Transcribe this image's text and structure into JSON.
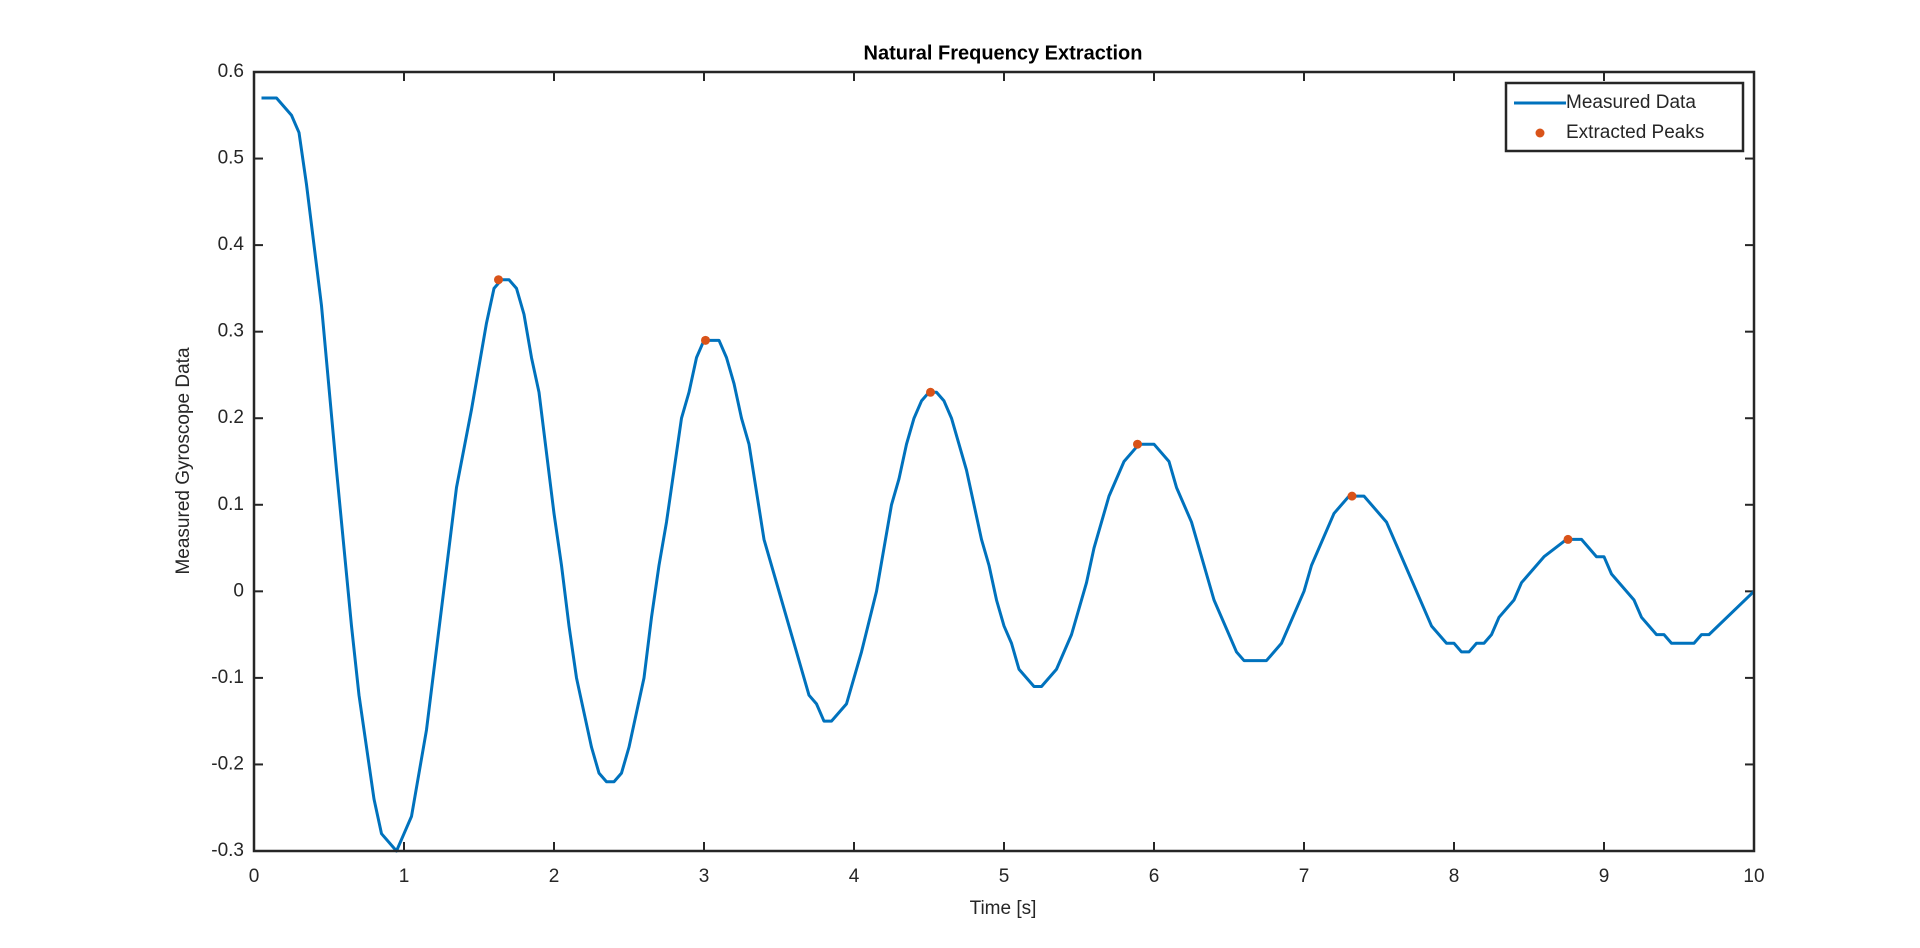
{
  "chart_data": {
    "type": "line",
    "title": "Natural Frequency Extraction",
    "xlabel": "Time [s]",
    "ylabel": "Measured Gyroscope Data",
    "xlim": [
      0,
      10
    ],
    "ylim": [
      -0.3,
      0.6
    ],
    "xticks": [
      0,
      1,
      2,
      3,
      4,
      5,
      6,
      7,
      8,
      9,
      10
    ],
    "yticks": [
      -0.3,
      -0.2,
      -0.1,
      0,
      0.1,
      0.2,
      0.3,
      0.4,
      0.5,
      0.6
    ],
    "legend": "northeast",
    "series": [
      {
        "name": "Measured Data",
        "color": "#0072bd",
        "mode": "line",
        "x": [
          0.05,
          0.15,
          0.25,
          0.3,
          0.35,
          0.45,
          0.55,
          0.65,
          0.7,
          0.8,
          0.85,
          0.95,
          1.0,
          1.05,
          1.15,
          1.25,
          1.35,
          1.45,
          1.55,
          1.6,
          1.65,
          1.7,
          1.75,
          1.8,
          1.85,
          1.9,
          2.0,
          2.05,
          2.1,
          2.15,
          2.25,
          2.3,
          2.35,
          2.4,
          2.45,
          2.5,
          2.6,
          2.65,
          2.7,
          2.75,
          2.85,
          2.9,
          2.95,
          3.0,
          3.05,
          3.1,
          3.15,
          3.2,
          3.25,
          3.3,
          3.4,
          3.5,
          3.6,
          3.7,
          3.75,
          3.8,
          3.85,
          3.95,
          4.05,
          4.15,
          4.2,
          4.25,
          4.3,
          4.35,
          4.4,
          4.45,
          4.5,
          4.55,
          4.6,
          4.65,
          4.75,
          4.85,
          4.9,
          4.95,
          5.0,
          5.05,
          5.1,
          5.2,
          5.25,
          5.35,
          5.45,
          5.55,
          5.6,
          5.7,
          5.8,
          5.9,
          6.0,
          6.1,
          6.15,
          6.25,
          6.4,
          6.55,
          6.6,
          6.75,
          6.85,
          7.0,
          7.05,
          7.2,
          7.3,
          7.4,
          7.55,
          7.7,
          7.85,
          7.9,
          7.95,
          8.0,
          8.05,
          8.1,
          8.15,
          8.2,
          8.25,
          8.3,
          8.4,
          8.45,
          8.6,
          8.75,
          8.85,
          8.95,
          9.0,
          9.05,
          9.2,
          9.25,
          9.35,
          9.4,
          9.45,
          9.6,
          9.65,
          9.7,
          10.0
        ],
        "values": [
          0.57,
          0.57,
          0.55,
          0.53,
          0.47,
          0.33,
          0.14,
          -0.04,
          -0.12,
          -0.24,
          -0.28,
          -0.3,
          -0.28,
          -0.26,
          -0.16,
          -0.02,
          0.12,
          0.21,
          0.31,
          0.35,
          0.36,
          0.36,
          0.35,
          0.32,
          0.27,
          0.23,
          0.09,
          0.03,
          -0.04,
          -0.1,
          -0.18,
          -0.21,
          -0.22,
          -0.22,
          -0.21,
          -0.18,
          -0.1,
          -0.03,
          0.03,
          0.08,
          0.2,
          0.23,
          0.27,
          0.29,
          0.29,
          0.29,
          0.27,
          0.24,
          0.2,
          0.17,
          0.06,
          0.0,
          -0.06,
          -0.12,
          -0.13,
          -0.15,
          -0.15,
          -0.13,
          -0.07,
          0.0,
          0.05,
          0.1,
          0.13,
          0.17,
          0.2,
          0.22,
          0.23,
          0.23,
          0.22,
          0.2,
          0.14,
          0.06,
          0.03,
          -0.01,
          -0.04,
          -0.06,
          -0.09,
          -0.11,
          -0.11,
          -0.09,
          -0.05,
          0.01,
          0.05,
          0.11,
          0.15,
          0.17,
          0.17,
          0.15,
          0.12,
          0.08,
          -0.01,
          -0.07,
          -0.08,
          -0.08,
          -0.06,
          0.0,
          0.03,
          0.09,
          0.11,
          0.11,
          0.08,
          0.02,
          -0.04,
          -0.05,
          -0.06,
          -0.06,
          -0.07,
          -0.07,
          -0.06,
          -0.06,
          -0.05,
          -0.03,
          -0.01,
          0.01,
          0.04,
          0.06,
          0.06,
          0.04,
          0.04,
          0.02,
          -0.01,
          -0.03,
          -0.05,
          -0.05,
          -0.06,
          -0.06,
          -0.05,
          -0.05,
          0.0
        ]
      },
      {
        "name": "Extracted Peaks",
        "color": "#d95319",
        "mode": "markers",
        "x": [
          1.63,
          3.01,
          4.51,
          5.89,
          7.32,
          8.76
        ],
        "values": [
          0.36,
          0.29,
          0.23,
          0.17,
          0.11,
          0.06
        ]
      }
    ]
  }
}
